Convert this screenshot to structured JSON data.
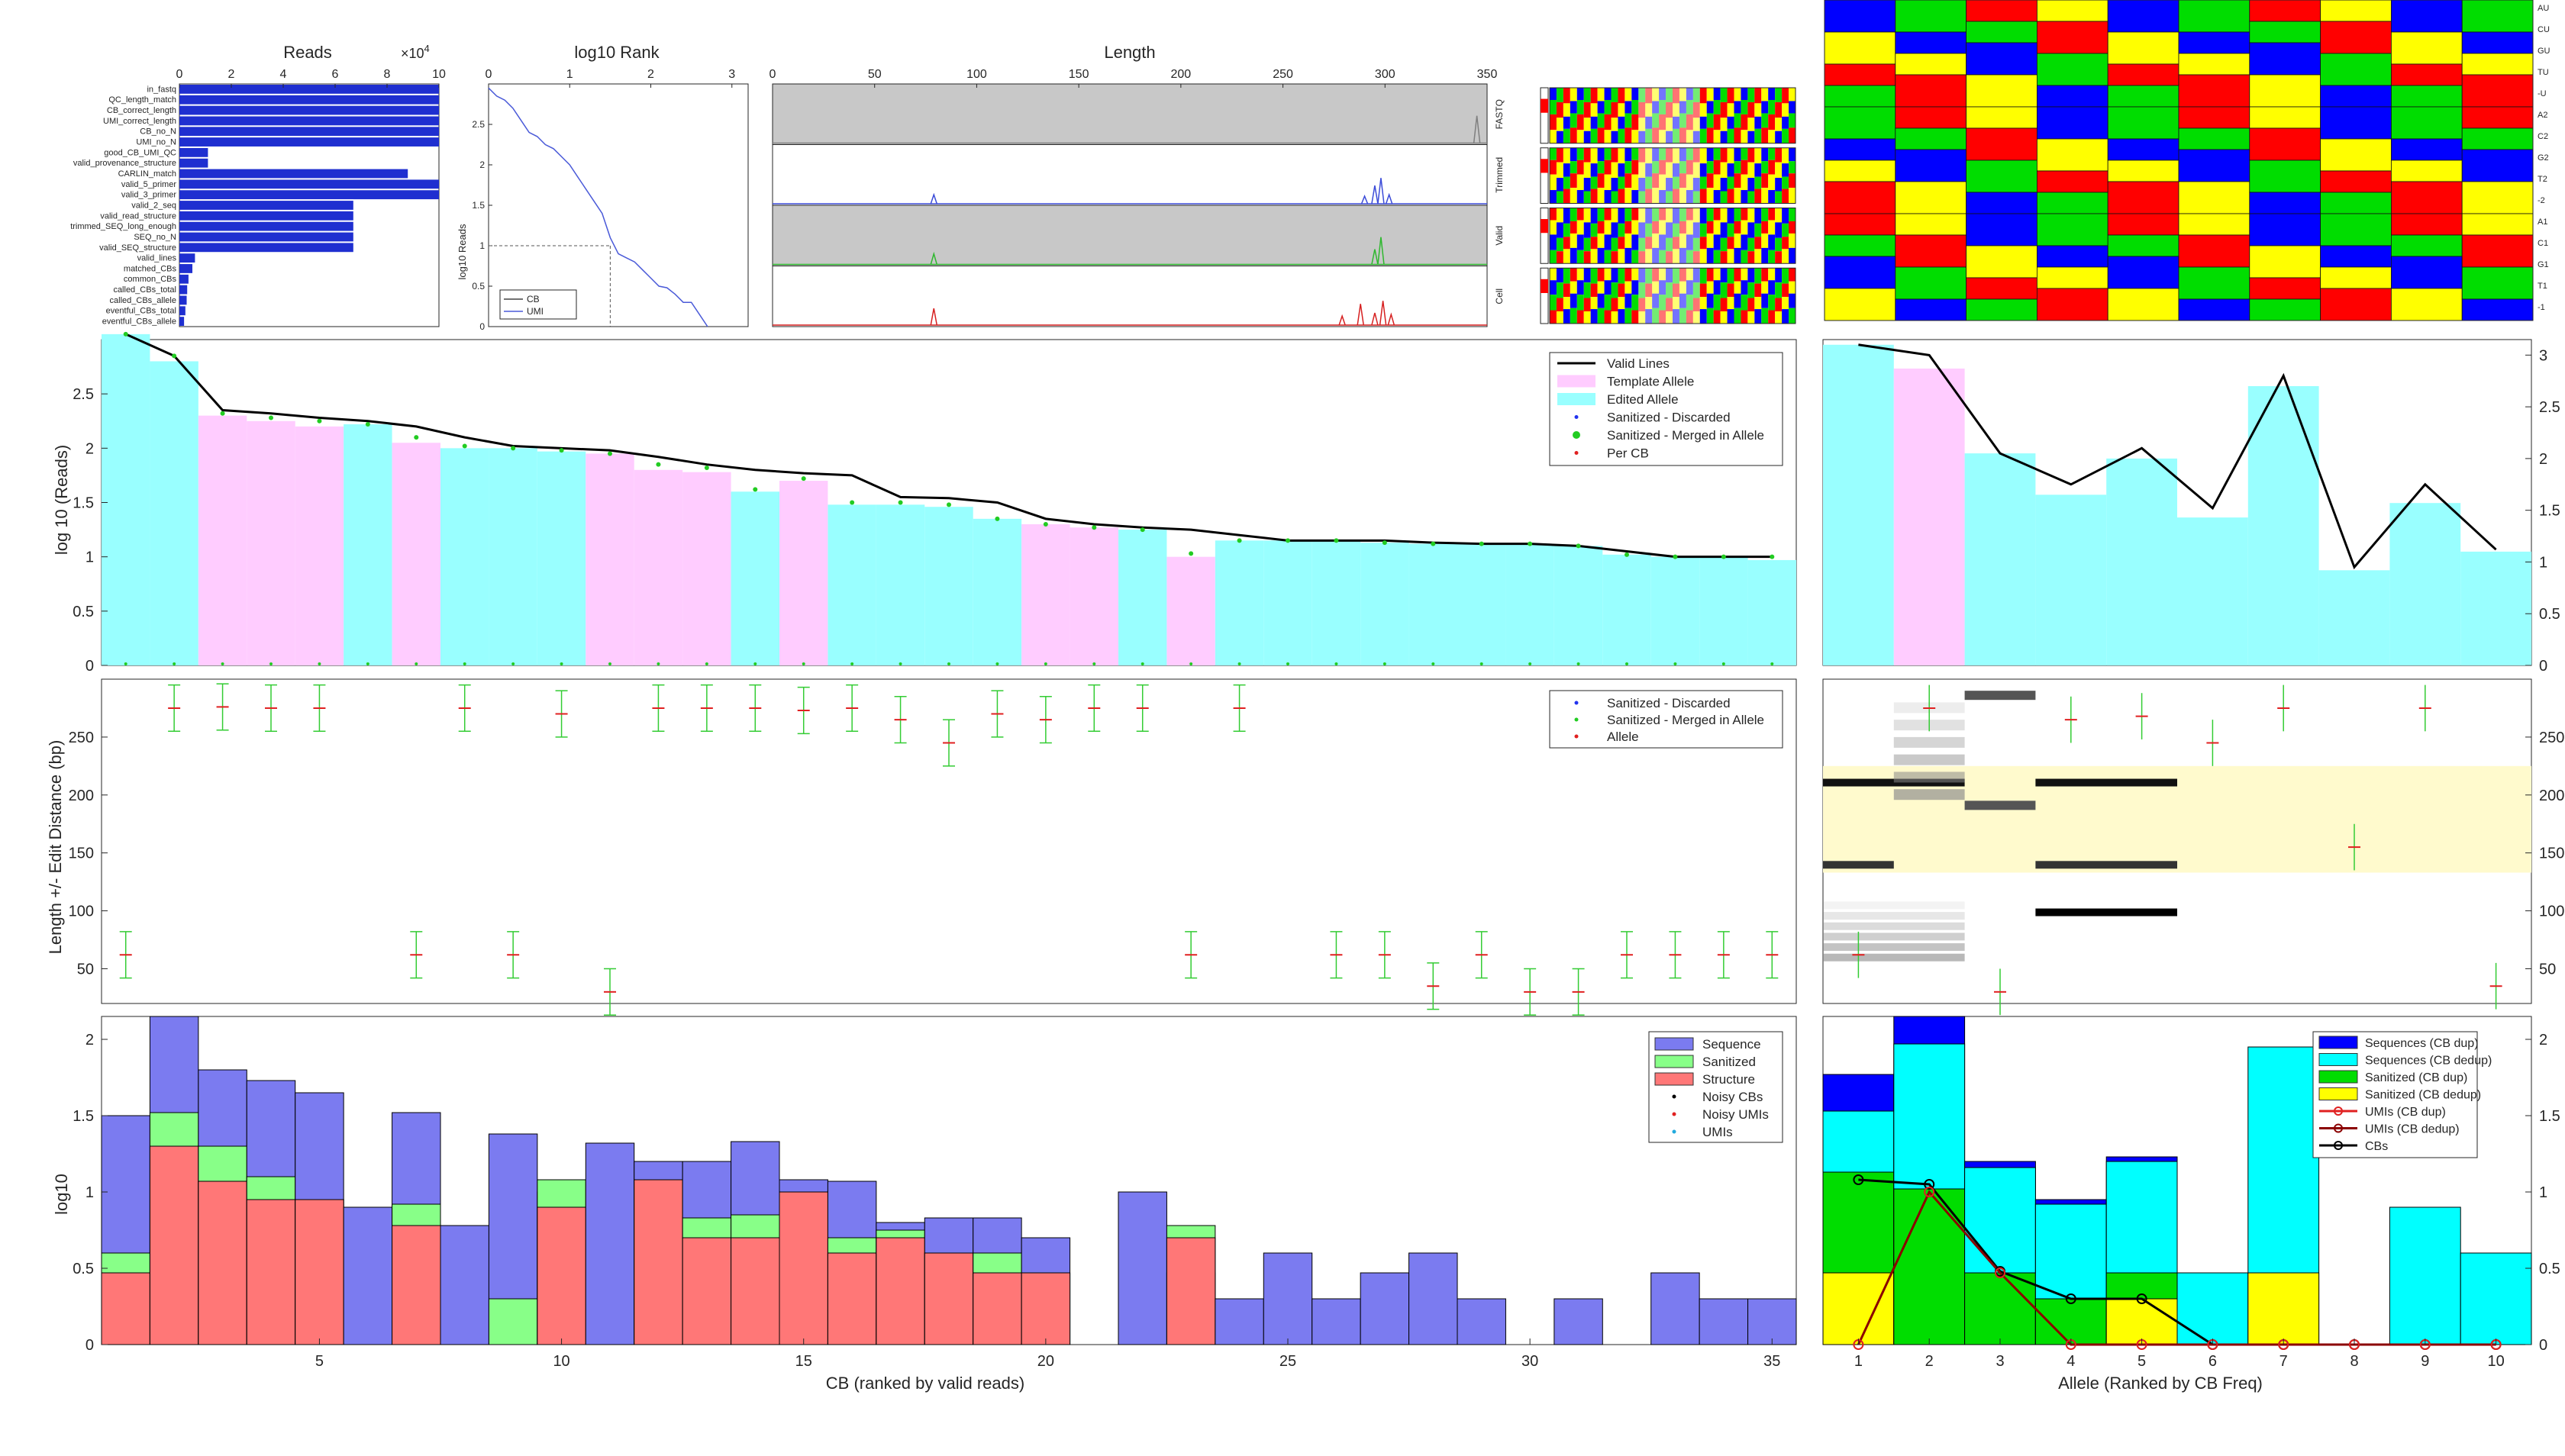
{
  "reads": {
    "title": "Reads",
    "exponent": "×10",
    "exponent_power": "4",
    "ticks": [
      "0",
      "2",
      "4",
      "6",
      "8",
      "10"
    ],
    "xlim": [
      0,
      100000
    ],
    "labels": [
      "in_fastq",
      "QC_length_match",
      "CB_correct_length",
      "UMI_correct_length",
      "CB_no_N",
      "UMI_no_N",
      "good_CB_UMI_QC",
      "valid_provenance_structure",
      "CARLIN_match",
      "valid_5_primer",
      "valid_3_primer",
      "valid_2_seq",
      "valid_read_structure",
      "trimmed_SEQ_long_enough",
      "SEQ_no_N",
      "valid_SEQ_structure",
      "valid_lines",
      "matched_CBs",
      "common_CBs",
      "called_CBs_total",
      "called_CBs_allele",
      "eventful_CBs_total",
      "eventful_CBs_allele"
    ],
    "values": [
      100000,
      100000,
      100000,
      100000,
      100000,
      100000,
      11000,
      11000,
      88000,
      100000,
      100000,
      67000,
      67000,
      67000,
      67000,
      67000,
      6000,
      5000,
      3500,
      3000,
      2800,
      2300,
      1800
    ]
  },
  "rank": {
    "title": "log10 Rank",
    "ylabel": "log10 Reads",
    "xticks": [
      "0",
      "1",
      "2",
      "3"
    ],
    "yticks": [
      "0",
      "0.5",
      "1",
      "1.5",
      "2",
      "2.5"
    ],
    "xlim": [
      0,
      3.2
    ],
    "ylim": [
      0,
      3
    ],
    "legend": [
      "CB",
      "UMI"
    ],
    "marker_x": 1.5,
    "marker_y": 1.0,
    "umi_x": [
      0,
      0.1,
      0.2,
      0.3,
      0.4,
      0.5,
      0.6,
      0.7,
      0.8,
      0.9,
      1.0,
      1.1,
      1.2,
      1.3,
      1.4,
      1.5,
      1.6,
      1.7,
      1.8,
      1.9,
      2.0,
      2.1,
      2.2,
      2.3,
      2.4,
      2.5,
      2.6,
      2.7
    ],
    "umi_y": [
      2.95,
      2.85,
      2.8,
      2.7,
      2.55,
      2.4,
      2.35,
      2.25,
      2.2,
      2.1,
      2.0,
      1.85,
      1.7,
      1.55,
      1.4,
      1.1,
      0.9,
      0.85,
      0.8,
      0.7,
      0.6,
      0.5,
      0.48,
      0.4,
      0.3,
      0.3,
      0.15,
      0
    ]
  },
  "length": {
    "title": "Length",
    "xticks": [
      "0",
      "50",
      "100",
      "150",
      "200",
      "250",
      "300",
      "350"
    ],
    "xlim": [
      0,
      350
    ],
    "row_labels": [
      "FASTQ",
      "Trimmed",
      "Valid",
      "Cell"
    ],
    "row_colors": [
      "#7f7f7f",
      "#3b4bd8",
      "#2eb82e",
      "#d62020"
    ],
    "peaks": [
      [
        [
          345,
          0.9
        ]
      ],
      [
        [
          79,
          0.3
        ],
        [
          295,
          0.6
        ],
        [
          290,
          0.25
        ],
        [
          298,
          0.85
        ],
        [
          302,
          0.3
        ]
      ],
      [
        [
          79,
          0.35
        ],
        [
          295,
          0.5
        ],
        [
          298,
          0.9
        ]
      ],
      [
        [
          79,
          0.55
        ],
        [
          279,
          0.3
        ],
        [
          288,
          0.7
        ],
        [
          295,
          0.4
        ],
        [
          299,
          0.8
        ],
        [
          303,
          0.35
        ]
      ]
    ]
  },
  "allele_labels": [
    "AU",
    "CU",
    "GU",
    "TU",
    "-U",
    "A2",
    "C2",
    "G2",
    "T2",
    "-2",
    "A1",
    "C1",
    "G1",
    "T1",
    "-1"
  ],
  "colors": {
    "blue": "#0000ff",
    "green": "#00dd00",
    "red": "#ff0000",
    "yellow": "#ffff00",
    "cyan": "#99ffff",
    "pink": "#ffccff",
    "black": "#000000",
    "seq_blue": "#7b7bf0",
    "sanit_green": "#88ff88",
    "struct_red": "#ff7777"
  },
  "cb_panel": {
    "ylabel": "log 10 (Reads)",
    "yticks": [
      "0",
      "0.5",
      "1",
      "1.5",
      "2",
      "2.5"
    ],
    "ylim": [
      0,
      3.0
    ],
    "legend": [
      "Valid Lines",
      "Template Allele",
      "Edited Allele",
      "Sanitized - Discarded",
      "Sanitized - Merged in Allele",
      "Per CB"
    ],
    "valid_lines": [
      3.05,
      2.85,
      2.35,
      2.32,
      2.28,
      2.25,
      2.2,
      2.1,
      2.02,
      2.0,
      1.98,
      1.92,
      1.85,
      1.8,
      1.77,
      1.75,
      1.55,
      1.54,
      1.5,
      1.35,
      1.3,
      1.27,
      1.25,
      1.2,
      1.15,
      1.15,
      1.15,
      1.13,
      1.12,
      1.12,
      1.1,
      1.05,
      1.0,
      1.0,
      1.0
    ],
    "bar_type": [
      "E",
      "E",
      "T",
      "T",
      "T",
      "E",
      "T",
      "E",
      "E",
      "E",
      "T",
      "T",
      "T",
      "E",
      "T",
      "E",
      "E",
      "E",
      "E",
      "T",
      "T",
      "E",
      "T",
      "E",
      "E",
      "E",
      "E",
      "E",
      "E",
      "E",
      "E",
      "E",
      "E",
      "E",
      "E"
    ],
    "bar_heights": [
      3.05,
      2.8,
      2.3,
      2.25,
      2.2,
      2.22,
      2.05,
      2.0,
      2.0,
      1.97,
      1.95,
      1.8,
      1.78,
      1.6,
      1.7,
      1.48,
      1.48,
      1.46,
      1.35,
      1.3,
      1.27,
      1.25,
      1.0,
      1.15,
      1.15,
      1.15,
      1.13,
      1.12,
      1.12,
      1.12,
      1.1,
      1.02,
      1.0,
      1.0,
      0.97
    ],
    "green_dots": [
      3.05,
      2.85,
      2.32,
      2.28,
      2.25,
      2.22,
      2.1,
      2.02,
      2.0,
      1.98,
      1.95,
      1.85,
      1.82,
      1.62,
      1.72,
      1.5,
      1.5,
      1.48,
      1.35,
      1.3,
      1.27,
      1.25,
      1.03,
      1.15,
      1.15,
      1.15,
      1.13,
      1.12,
      1.12,
      1.12,
      1.1,
      1.02,
      1.0,
      1.0,
      1.0
    ]
  },
  "allele_panel": {
    "yticks": [
      "0",
      "0.5",
      "1",
      "1.5",
      "2",
      "2.5",
      "3"
    ],
    "ylim": [
      0,
      3.15
    ],
    "bar_type": [
      "E",
      "T",
      "E",
      "E",
      "E",
      "E",
      "E",
      "E",
      "E",
      "E"
    ],
    "bar_heights": [
      3.1,
      2.87,
      2.05,
      1.65,
      2.0,
      1.43,
      2.7,
      0.92,
      1.57,
      1.1
    ],
    "line": [
      3.1,
      3.0,
      2.05,
      1.75,
      2.1,
      1.52,
      2.8,
      0.95,
      1.75,
      1.12
    ]
  },
  "length_panel": {
    "ylabel": "Length +/- Edit Distance (bp)",
    "yticks": [
      "50",
      "100",
      "150",
      "200",
      "250"
    ],
    "ylim": [
      20,
      300
    ],
    "legend": [
      "Sanitized - Discarded",
      "Sanitized - Merged in Allele",
      "Allele"
    ],
    "centers": [
      62,
      275,
      276,
      275,
      275,
      null,
      62,
      275,
      62,
      270,
      30,
      275,
      275,
      275,
      273,
      275,
      265,
      245,
      270,
      265,
      275,
      275,
      62,
      275,
      null,
      62,
      62,
      35,
      62,
      30,
      30,
      62,
      62,
      62,
      62,
      155
    ],
    "allele_centers": [
      62,
      275,
      30,
      265,
      268,
      245,
      275,
      155,
      275,
      35
    ]
  },
  "bottom_cb": {
    "ylabel": "log10",
    "xlabel": "CB (ranked by valid reads)",
    "xticks": [
      "5",
      "10",
      "15",
      "20",
      "25",
      "30",
      "35"
    ],
    "yticks": [
      "0",
      "0.5",
      "1",
      "1.5",
      "2"
    ],
    "ylim": [
      0,
      2.15
    ],
    "legend": [
      "Sequence",
      "Sanitized",
      "Structure",
      "Noisy CBs",
      "Noisy UMIs",
      "UMIs"
    ],
    "sequence": [
      1.5,
      2.15,
      1.8,
      1.73,
      1.65,
      0.9,
      1.52,
      0.78,
      1.38,
      1.0,
      1.32,
      1.2,
      1.2,
      1.33,
      1.08,
      1.07,
      0.8,
      0.83,
      0.83,
      0.7,
      0,
      1.0,
      0.47,
      0.3,
      0.6,
      0.3,
      0.47,
      0.6,
      0.3,
      0,
      0.3,
      0,
      0.47,
      0.3,
      0.3
    ],
    "sanitized": [
      0.6,
      1.52,
      1.3,
      1.1,
      0.95,
      0,
      0.92,
      0,
      0.3,
      1.08,
      0,
      1.08,
      0.83,
      0.85,
      1.0,
      0.7,
      0.75,
      0.6,
      0.6,
      0.47,
      0,
      0,
      0.78,
      0,
      0,
      0,
      0,
      0,
      0,
      0,
      0,
      0,
      0,
      0,
      0
    ],
    "structure": [
      0.47,
      1.3,
      1.07,
      0.95,
      0.95,
      0,
      0.78,
      0,
      0,
      0.9,
      0,
      1.08,
      0.7,
      0.7,
      1.0,
      0.6,
      0.7,
      0.6,
      0.47,
      0.47,
      0,
      0,
      0.7,
      0,
      0,
      0,
      0,
      0,
      0,
      0,
      0,
      0,
      0,
      0,
      0
    ]
  },
  "bottom_allele": {
    "xlabel": "Allele (Ranked by CB Freq)",
    "xticks": [
      "1",
      "2",
      "3",
      "4",
      "5",
      "6",
      "7",
      "8",
      "9",
      "10"
    ],
    "yticks": [
      "0",
      "0.5",
      "1",
      "1.5",
      "2"
    ],
    "ylim": [
      0,
      2.15
    ],
    "legend": [
      "Sequences (CB dup)",
      "Sequences (CB dedup)",
      "Sanitized (CB dup)",
      "Sanitized (CB dedup)",
      "UMIs (CB dup)",
      "UMIs (CB dedup)",
      "CBs"
    ],
    "seq_dup": [
      1.77,
      2.15,
      1.2,
      0.95,
      1.23,
      0,
      0,
      0,
      0,
      0
    ],
    "seq_dedup": [
      1.53,
      1.97,
      1.16,
      0.92,
      1.2,
      0.47,
      1.95,
      0,
      0.9,
      0.6
    ],
    "san_dup": [
      1.13,
      1.02,
      0.47,
      0.3,
      0.47,
      0,
      0,
      0,
      0,
      0
    ],
    "san_dedup": [
      0.47,
      0,
      0,
      0,
      0.3,
      0,
      0.47,
      0,
      0,
      0
    ],
    "cbs": [
      1.08,
      1.05,
      0.48,
      0.3,
      0.3,
      0,
      0,
      0,
      0,
      0
    ],
    "umis": [
      0,
      1.0,
      0.47,
      0,
      0,
      0,
      0,
      0,
      0,
      0
    ]
  }
}
